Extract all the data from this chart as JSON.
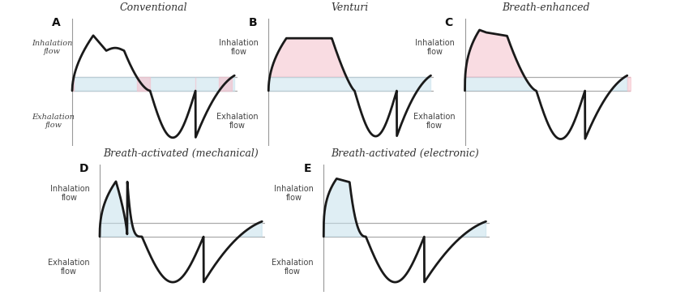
{
  "title_A": "Conventional",
  "title_B": "Venturi",
  "title_C": "Breath-enhanced",
  "title_D": "Breath-activated (mechanical)",
  "title_E": "Breath-activated (electronic)",
  "label_A": "A",
  "label_B": "B",
  "label_C": "C",
  "label_D": "D",
  "label_E": "E",
  "inhalation_text": "Inhalation\nflow",
  "exhalation_text": "Exhalation\nflow",
  "bg_color": "#ffffff",
  "line_color": "#1a1a1a",
  "pink_color": "#f5c0cb",
  "blue_color": "#c5e0ec",
  "axis_color": "#aaaaaa",
  "font_color": "#333333",
  "title_fontsize": 9,
  "label_fontsize": 10,
  "flow_fontsize": 7
}
